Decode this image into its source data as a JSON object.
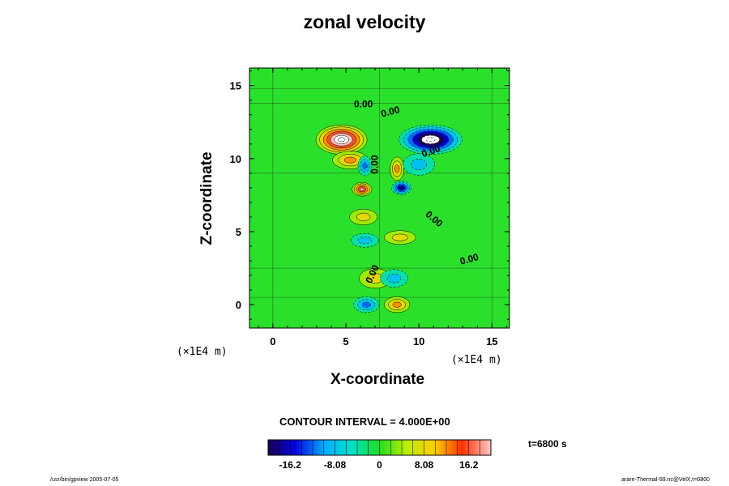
{
  "chart_data": {
    "type": "heatmap",
    "title": "zonal velocity",
    "xlabel": "X-coordinate",
    "ylabel": "Z-coordinate",
    "x_unit": "(×1E4 m)",
    "y_unit": "(×1E4 m)",
    "xlim": [
      -1.6,
      16.2
    ],
    "ylim": [
      -1.6,
      16.2
    ],
    "xticks": [
      "0",
      "5",
      "10",
      "15"
    ],
    "yticks": [
      "0",
      "5",
      "10",
      "15"
    ],
    "contour_interval": "CONTOUR INTERVAL = 4.000E+00",
    "time_label": "t=6800 s",
    "colorbar_ticks": [
      "-16.2",
      "-8.08",
      "0",
      "8.08",
      "16.2"
    ],
    "colorbar_range": [
      -20.2,
      20.2
    ],
    "contour_labels": [
      {
        "text": "0.00",
        "x": 6.2,
        "z": 13.5,
        "rot": 0
      },
      {
        "text": "0.00",
        "x": 8.1,
        "z": 13.0,
        "rot": -15
      },
      {
        "text": "0.00",
        "x": 10.9,
        "z": 10.3,
        "rot": -20
      },
      {
        "text": "0.00",
        "x": 7.2,
        "z": 9.6,
        "rot": -90
      },
      {
        "text": "0.00",
        "x": 10.9,
        "z": 5.7,
        "rot": 40
      },
      {
        "text": "0.00",
        "x": 13.5,
        "z": 2.9,
        "rot": -15
      },
      {
        "text": "0.00",
        "x": 7.0,
        "z": 2.0,
        "rot": -65
      }
    ],
    "features": [
      {
        "x": 4.7,
        "z": 11.3,
        "a": 25,
        "sx": 1.3,
        "sz": 0.75
      },
      {
        "x": 10.8,
        "z": 11.3,
        "a": -25,
        "sx": 1.6,
        "sz": 0.75
      },
      {
        "x": 5.3,
        "z": 9.9,
        "a": 9,
        "sx": 0.9,
        "sz": 0.45
      },
      {
        "x": 6.3,
        "z": 9.5,
        "a": -9,
        "sx": 0.35,
        "sz": 0.5
      },
      {
        "x": 8.5,
        "z": 9.3,
        "a": 11,
        "sx": 0.35,
        "sz": 0.6
      },
      {
        "x": 10.0,
        "z": 9.6,
        "a": -7,
        "sx": 0.8,
        "sz": 0.55
      },
      {
        "x": 6.1,
        "z": 7.9,
        "a": 16,
        "sx": 0.5,
        "sz": 0.35
      },
      {
        "x": 8.8,
        "z": 8.0,
        "a": -16,
        "sx": 0.5,
        "sz": 0.35
      },
      {
        "x": 6.2,
        "z": 6.0,
        "a": 5,
        "sx": 0.7,
        "sz": 0.4
      },
      {
        "x": 8.7,
        "z": 4.6,
        "a": 6,
        "sx": 0.8,
        "sz": 0.35
      },
      {
        "x": 6.3,
        "z": 4.4,
        "a": -4,
        "sx": 0.7,
        "sz": 0.35
      },
      {
        "x": 7.0,
        "z": 1.8,
        "a": 4,
        "sx": 0.8,
        "sz": 0.5
      },
      {
        "x": 8.3,
        "z": 1.8,
        "a": -3,
        "sx": 0.7,
        "sz": 0.45
      },
      {
        "x": 6.4,
        "z": 0.0,
        "a": -8,
        "sx": 0.65,
        "sz": 0.4
      },
      {
        "x": 8.5,
        "z": 0.0,
        "a": 9,
        "sx": 0.65,
        "sz": 0.4
      }
    ]
  },
  "footer": {
    "left": "/usr/bin/gpview 2005-07-05",
    "right": "arare-Thermal-99.nc@VelX,t=6800"
  }
}
